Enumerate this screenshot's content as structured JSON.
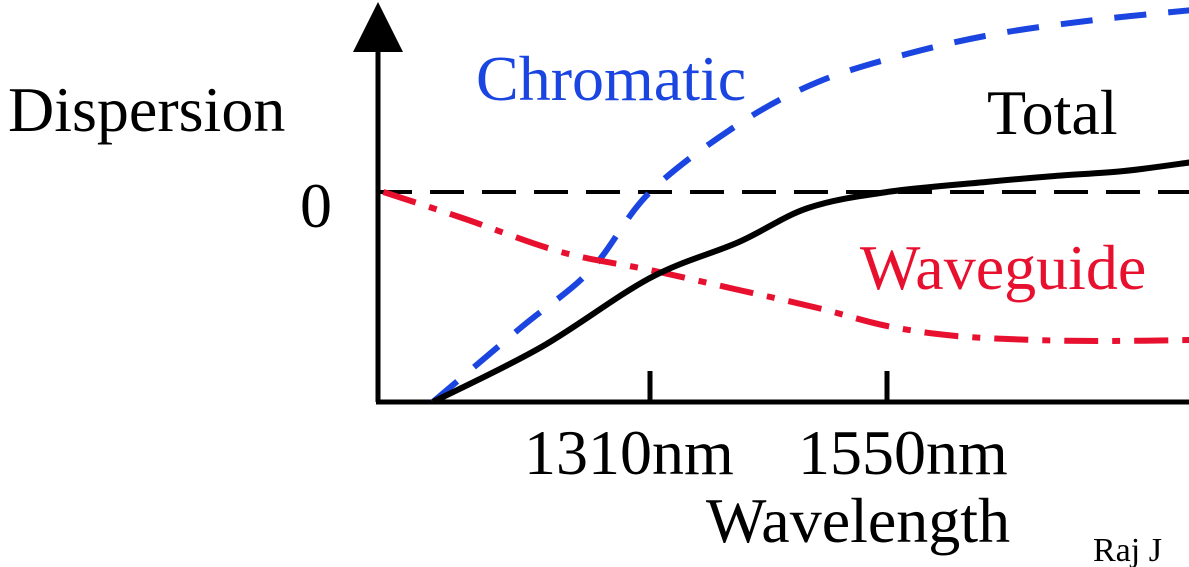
{
  "chart_data": {
    "type": "line",
    "ylabel": "Dispersion",
    "xlabel": "Wavelength",
    "x_ticks": [
      "1310nm",
      "1550nm"
    ],
    "y_ticks": [
      "0"
    ],
    "grid": false,
    "legend": "none",
    "series": [
      {
        "name": "Chromatic",
        "color": "#1b45e0",
        "style": "dashed",
        "points": [
          [
            1090,
            -2.1
          ],
          [
            1180,
            -1.35
          ],
          [
            1250,
            -0.78
          ],
          [
            1310,
            0.0
          ],
          [
            1400,
            0.68
          ],
          [
            1480,
            1.1
          ],
          [
            1570,
            1.38
          ],
          [
            1660,
            1.58
          ],
          [
            1760,
            1.72
          ],
          [
            1860,
            1.82
          ]
        ]
      },
      {
        "name": "Waveguide",
        "color": "#e8102f",
        "style": "dashdot",
        "points": [
          [
            1040,
            0.0
          ],
          [
            1120,
            -0.26
          ],
          [
            1220,
            -0.6
          ],
          [
            1310,
            -0.78
          ],
          [
            1400,
            -0.98
          ],
          [
            1480,
            -1.16
          ],
          [
            1550,
            -1.34
          ],
          [
            1620,
            -1.44
          ],
          [
            1700,
            -1.48
          ],
          [
            1770,
            -1.49
          ],
          [
            1860,
            -1.48
          ]
        ]
      },
      {
        "name": "Total",
        "color": "#000000",
        "style": "solid",
        "points": [
          [
            1090,
            -2.1
          ],
          [
            1200,
            -1.55
          ],
          [
            1310,
            -0.86
          ],
          [
            1400,
            -0.5
          ],
          [
            1470,
            -0.16
          ],
          [
            1550,
            0.0
          ],
          [
            1650,
            0.1
          ],
          [
            1720,
            0.16
          ],
          [
            1790,
            0.21
          ],
          [
            1860,
            0.3
          ]
        ]
      }
    ]
  },
  "footer": {
    "credit": "Raj J"
  }
}
